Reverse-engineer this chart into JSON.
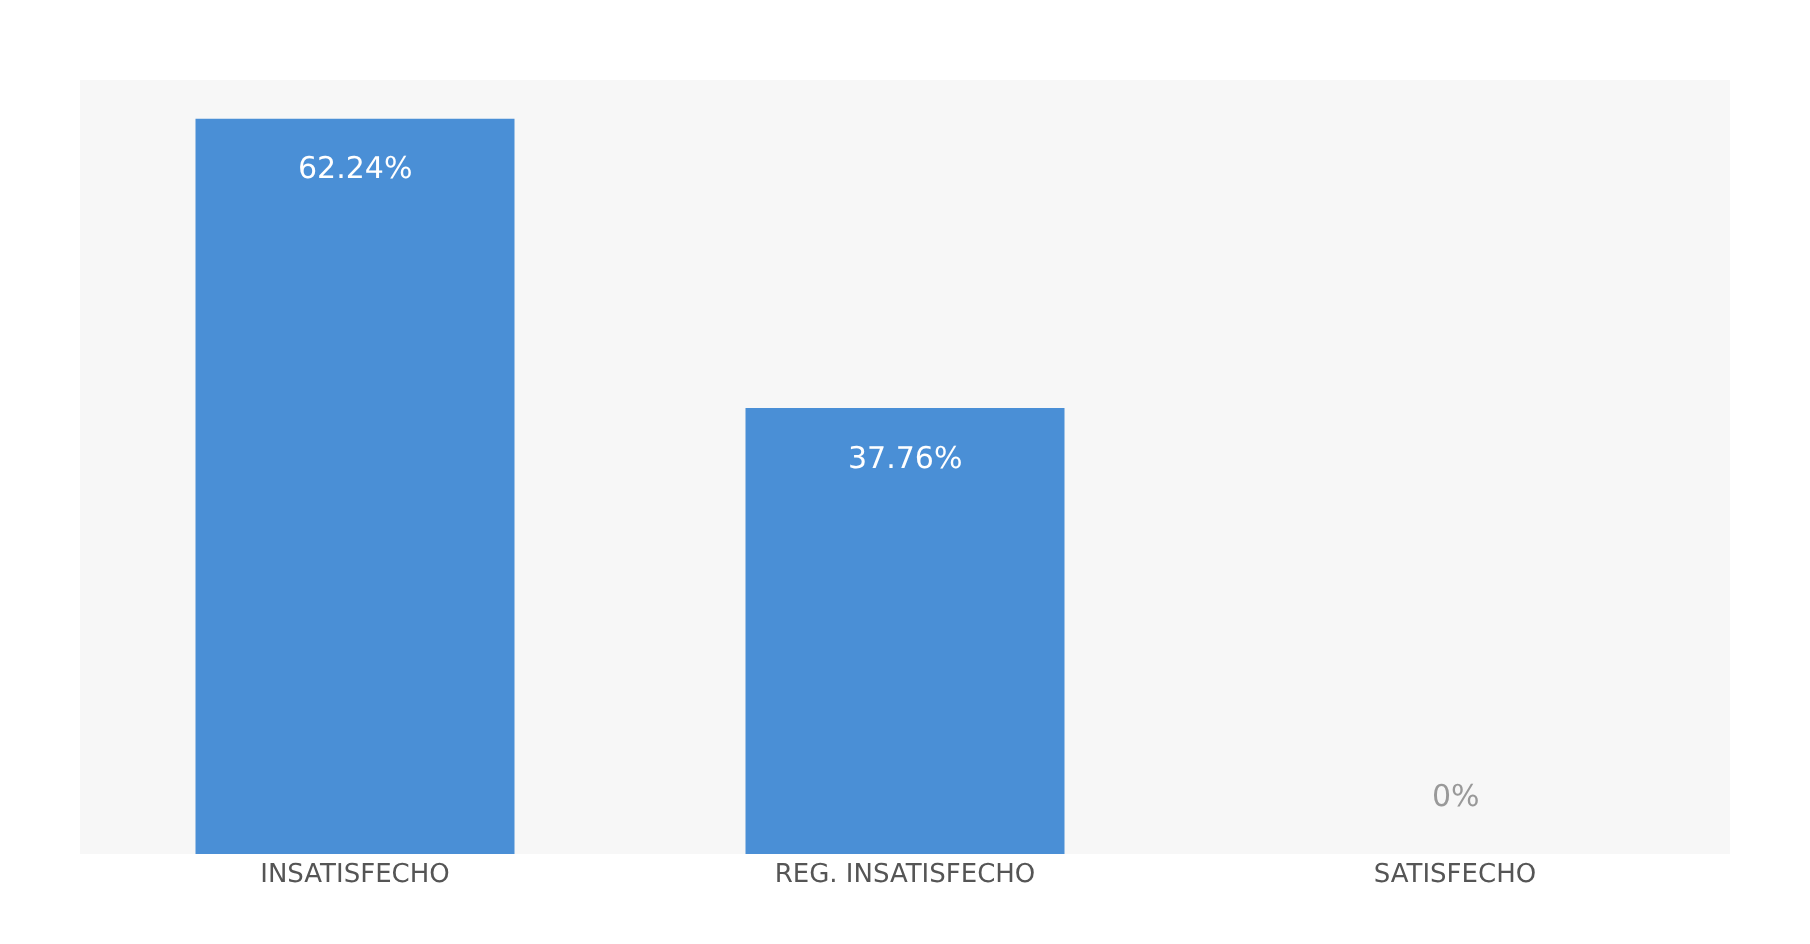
{
  "chart_data": {
    "type": "bar",
    "categories": [
      "INSATISFECHO",
      "REG. INSATISFECHO",
      "SATISFECHO"
    ],
    "values": [
      62.24,
      37.76,
      0
    ],
    "color": "#4a8fd6",
    "value_labels": [
      "62.24%",
      "37.76%",
      "0%"
    ]
  }
}
